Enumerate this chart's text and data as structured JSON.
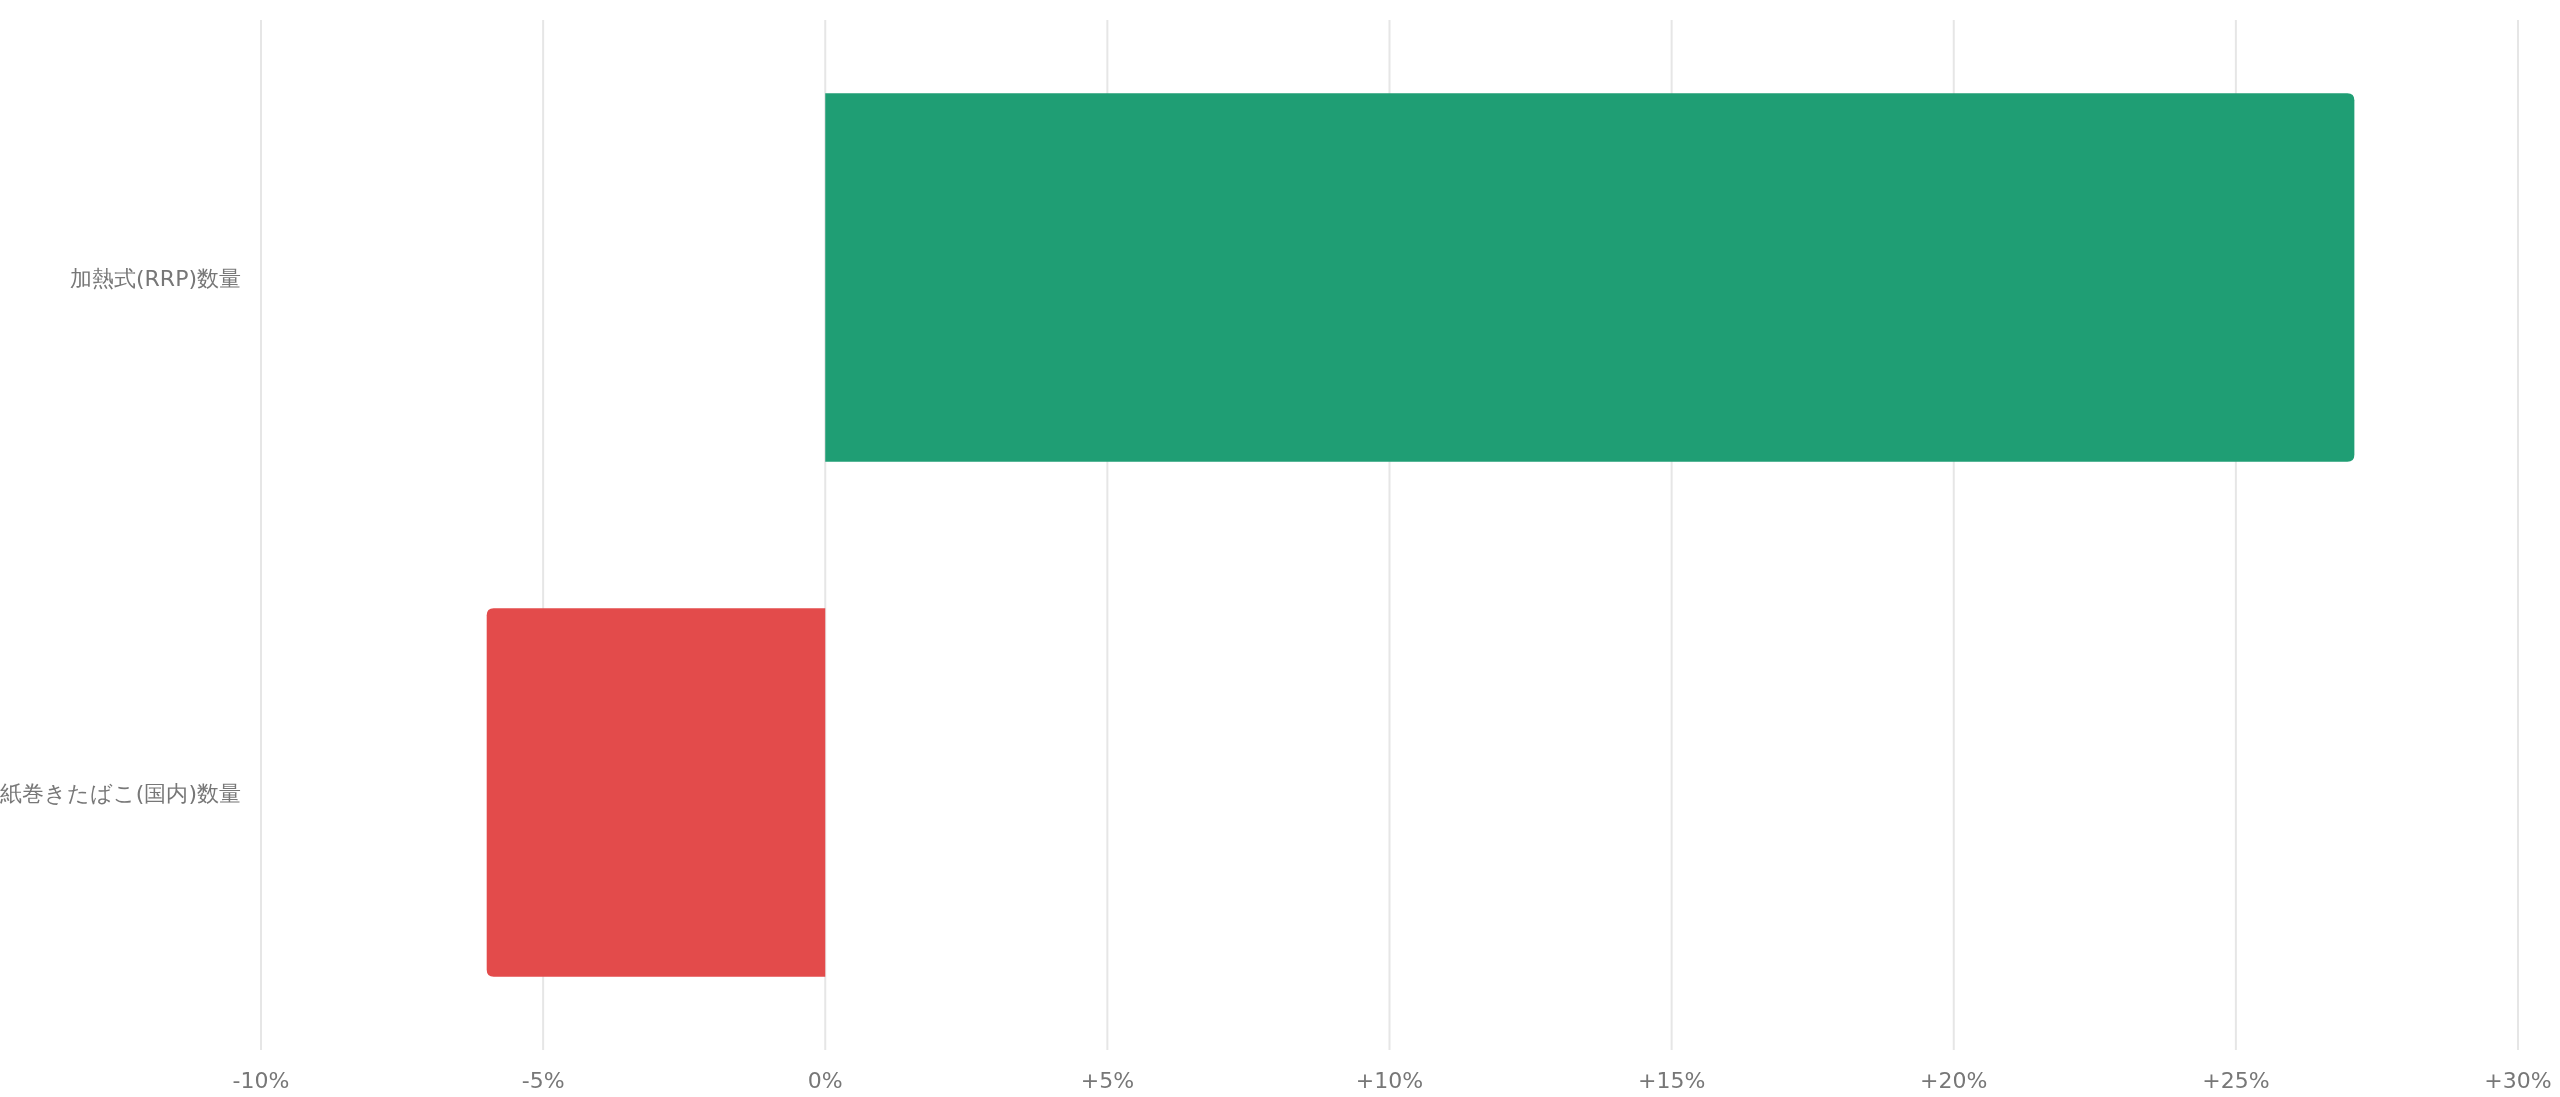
{
  "chart_data": {
    "type": "bar",
    "orientation": "horizontal",
    "grid": "x",
    "legend": false,
    "categories": [
      "加熱式(RRP)数量",
      "紙巻きたばこ(国内)数量"
    ],
    "values": [
      27.1,
      -6
    ],
    "colors": [
      "#1f9e74",
      "#e34b4b"
    ],
    "xlim": [
      -10,
      30
    ],
    "xticks": [
      {
        "value": -10,
        "label": "-10%"
      },
      {
        "value": -5,
        "label": "-5%"
      },
      {
        "value": 0,
        "label": "0%"
      },
      {
        "value": 5,
        "label": "+5%"
      },
      {
        "value": 10,
        "label": "+10%"
      },
      {
        "value": 15,
        "label": "+15%"
      },
      {
        "value": 20,
        "label": "+20%"
      },
      {
        "value": 25,
        "label": "+25%"
      },
      {
        "value": 30,
        "label": "+30%"
      }
    ]
  }
}
